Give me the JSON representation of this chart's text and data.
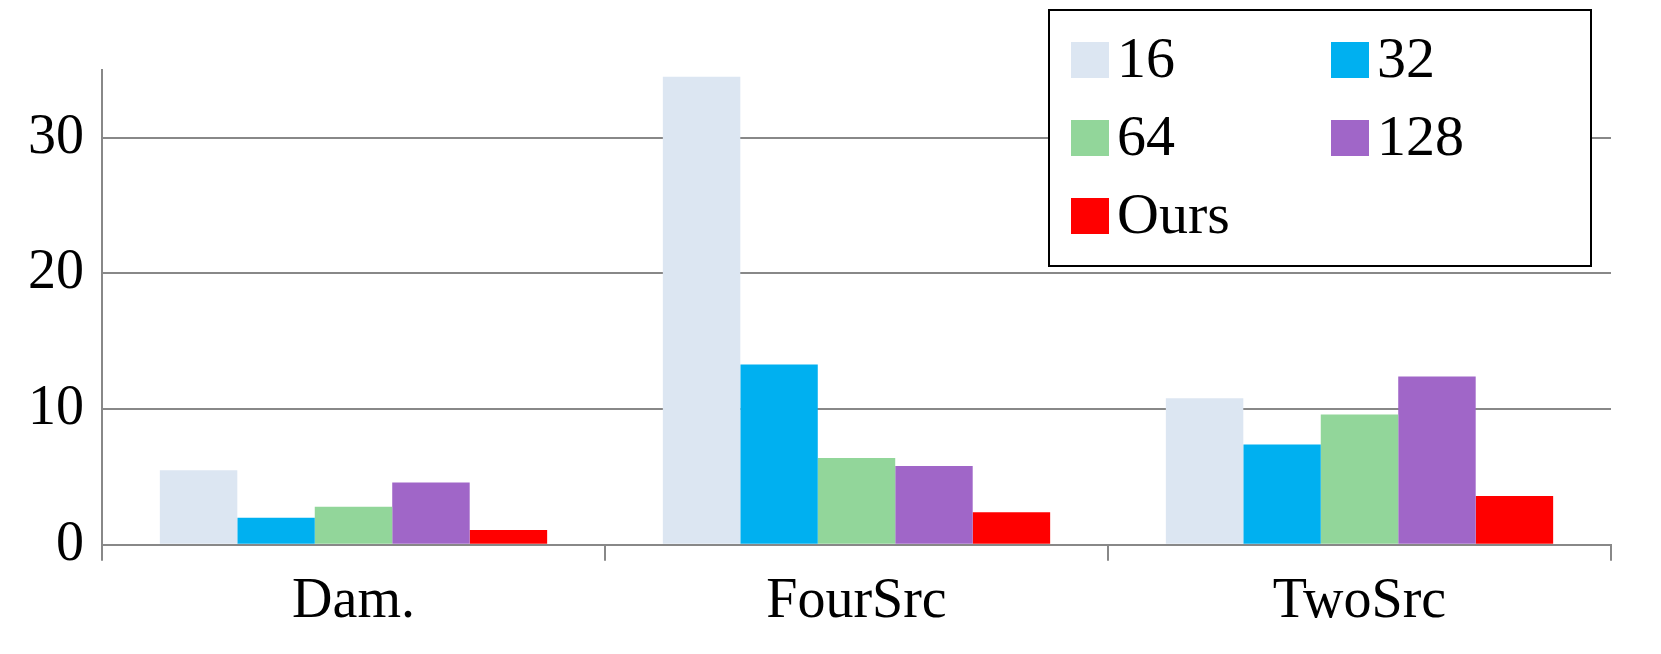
{
  "chart_data": {
    "type": "bar",
    "categories": [
      "Dam.",
      "FourSrc",
      "TwoSrc"
    ],
    "series": [
      {
        "name": "16",
        "color": "#dce6f2",
        "values": [
          5.5,
          34.5,
          10.8
        ]
      },
      {
        "name": "32",
        "color": "#00b0f0",
        "values": [
          2.0,
          13.3,
          7.4
        ]
      },
      {
        "name": "64",
        "color": "#92d69a",
        "values": [
          2.8,
          6.4,
          9.6
        ]
      },
      {
        "name": "128",
        "color": "#a066c8",
        "values": [
          4.6,
          5.8,
          12.4
        ]
      },
      {
        "name": "Ours",
        "color": "#ff0000",
        "values": [
          1.1,
          2.4,
          3.6
        ]
      }
    ],
    "ylim": [
      0,
      35
    ],
    "yticks": [
      0,
      10,
      20,
      30
    ],
    "grid": "y",
    "legend": "top right"
  }
}
